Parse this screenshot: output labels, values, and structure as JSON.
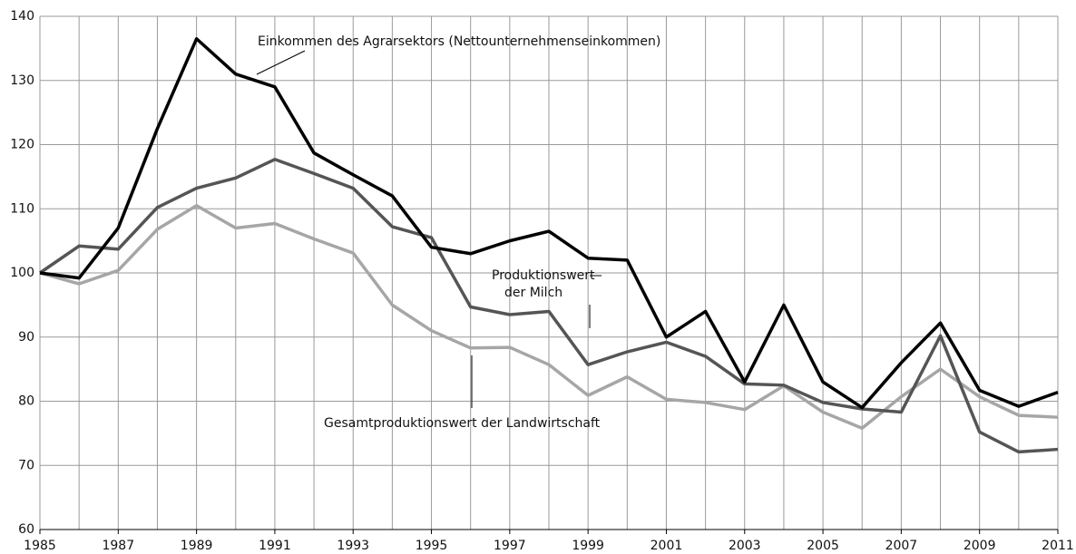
{
  "chart_data": {
    "type": "line",
    "x": [
      1985,
      1986,
      1987,
      1988,
      1989,
      1990,
      1991,
      1992,
      1993,
      1994,
      1995,
      1996,
      1997,
      1998,
      1999,
      2000,
      2001,
      2002,
      2003,
      2004,
      2005,
      2006,
      2007,
      2008,
      2009,
      2010,
      2011
    ],
    "series": [
      {
        "color": "#000000",
        "values": [
          100,
          99.2,
          107,
          122.5,
          136.5,
          131,
          129,
          118.7,
          115.3,
          112,
          104,
          103,
          105,
          106.5,
          102.3,
          102,
          90,
          94,
          83,
          95,
          83,
          79,
          86,
          92.2,
          81.7,
          79.2,
          81.4
        ]
      },
      {
        "color": "#555555",
        "values": [
          100,
          104.2,
          103.7,
          110.2,
          113.2,
          114.8,
          117.7,
          115.5,
          113.2,
          107.2,
          105.5,
          94.7,
          93.5,
          94,
          85.7,
          87.7,
          89.2,
          87,
          82.7,
          82.5,
          79.8,
          78.8,
          78.3,
          90.2,
          75.2,
          72.1,
          72.5
        ]
      },
      {
        "color": "#a6a6a6",
        "values": [
          100,
          98.3,
          100.4,
          106.8,
          110.5,
          107,
          107.7,
          105.3,
          103.1,
          95,
          91,
          88.3,
          88.4,
          85.7,
          80.9,
          83.8,
          80.3,
          79.8,
          78.7,
          82.4,
          78.3,
          75.8,
          80.7,
          85,
          80.7,
          77.8,
          77.5
        ]
      }
    ],
    "annotations": [
      {
        "lines": [
          "Einkommen des Agrarsektors (Nettounternehmenseinkommen)"
        ]
      },
      {
        "lines": [
          "Produktionswert",
          "der Milch"
        ]
      },
      {
        "lines": [
          "Gesamtproduktionswert der Landwirtschaft"
        ]
      }
    ],
    "xlim": [
      1985,
      2011
    ],
    "xticks": [
      1985,
      1987,
      1989,
      1991,
      1993,
      1995,
      1997,
      1999,
      2001,
      2003,
      2005,
      2007,
      2009,
      2011
    ],
    "ylim": [
      60,
      140
    ],
    "yticks": [
      60,
      70,
      80,
      90,
      100,
      110,
      120,
      130,
      140
    ],
    "grid": true
  }
}
